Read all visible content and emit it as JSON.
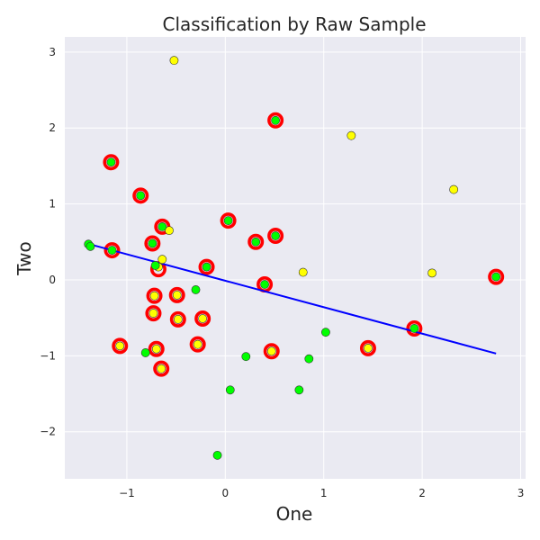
{
  "chart_data": {
    "type": "scatter",
    "title": "Classification by Raw Sample",
    "xlabel": "One",
    "ylabel": "Two",
    "xlim": [
      -1.63,
      3.05
    ],
    "ylim": [
      -2.62,
      3.2
    ],
    "xticks": [
      -1,
      0,
      1,
      2,
      3
    ],
    "yticks": [
      -2,
      -1,
      0,
      1,
      2,
      3
    ],
    "xtick_labels": [
      "−1",
      "0",
      "1",
      "2",
      "3"
    ],
    "ytick_labels": [
      "−2",
      "−1",
      "0",
      "1",
      "2",
      "3"
    ],
    "grid": true,
    "background": "#eaeaf2",
    "series": [
      {
        "color": "#ffff00",
        "marker": "circle",
        "points": [
          [
            -0.52,
            2.89
          ],
          [
            1.28,
            1.9
          ],
          [
            2.32,
            1.19
          ],
          [
            2.1,
            0.09
          ],
          [
            0.79,
            0.1
          ],
          [
            -0.57,
            0.65
          ],
          [
            -0.64,
            0.27
          ],
          [
            -0.68,
            0.17
          ],
          [
            -0.72,
            -0.21
          ],
          [
            -0.49,
            -0.2
          ],
          [
            -0.73,
            -0.44
          ],
          [
            -0.48,
            -0.52
          ],
          [
            -0.23,
            -0.51
          ],
          [
            -1.07,
            -0.87
          ],
          [
            -0.7,
            -0.91
          ],
          [
            -0.28,
            -0.85
          ],
          [
            0.47,
            -0.94
          ],
          [
            -0.65,
            -1.17
          ],
          [
            1.45,
            -0.9
          ]
        ]
      },
      {
        "color": "#00ff00",
        "marker": "circle",
        "points": [
          [
            0.51,
            2.1
          ],
          [
            -1.16,
            1.55
          ],
          [
            -0.86,
            1.11
          ],
          [
            -0.64,
            0.7
          ],
          [
            0.03,
            0.78
          ],
          [
            -0.74,
            0.48
          ],
          [
            0.31,
            0.5
          ],
          [
            0.51,
            0.58
          ],
          [
            -1.15,
            0.39
          ],
          [
            -1.39,
            0.47
          ],
          [
            -1.37,
            0.44
          ],
          [
            -0.19,
            0.17
          ],
          [
            -0.71,
            0.19
          ],
          [
            0.4,
            -0.06
          ],
          [
            -0.3,
            -0.13
          ],
          [
            1.02,
            -0.69
          ],
          [
            1.92,
            -0.64
          ],
          [
            2.75,
            0.04
          ],
          [
            -0.81,
            -0.96
          ],
          [
            0.21,
            -1.01
          ],
          [
            0.85,
            -1.04
          ],
          [
            0.05,
            -1.45
          ],
          [
            0.75,
            -1.45
          ],
          [
            -0.08,
            -2.31
          ]
        ]
      },
      {
        "color": "#ff0000",
        "marker": "ring",
        "points": [
          [
            0.51,
            2.1
          ],
          [
            -1.16,
            1.55
          ],
          [
            -0.86,
            1.11
          ],
          [
            -0.64,
            0.7
          ],
          [
            0.03,
            0.78
          ],
          [
            -0.74,
            0.48
          ],
          [
            0.31,
            0.5
          ],
          [
            0.51,
            0.58
          ],
          [
            -1.15,
            0.39
          ],
          [
            -0.19,
            0.17
          ],
          [
            -0.68,
            0.14
          ],
          [
            0.4,
            -0.06
          ],
          [
            -0.72,
            -0.21
          ],
          [
            -0.49,
            -0.2
          ],
          [
            -0.73,
            -0.44
          ],
          [
            -0.48,
            -0.52
          ],
          [
            -0.23,
            -0.51
          ],
          [
            -1.07,
            -0.87
          ],
          [
            -0.7,
            -0.91
          ],
          [
            -0.28,
            -0.85
          ],
          [
            0.47,
            -0.94
          ],
          [
            -0.65,
            -1.17
          ],
          [
            1.45,
            -0.9
          ],
          [
            1.92,
            -0.64
          ],
          [
            2.75,
            0.04
          ]
        ]
      }
    ],
    "line": {
      "color": "#0000ff",
      "points": [
        [
          -1.38,
          0.47
        ],
        [
          2.75,
          -0.97
        ]
      ]
    }
  }
}
